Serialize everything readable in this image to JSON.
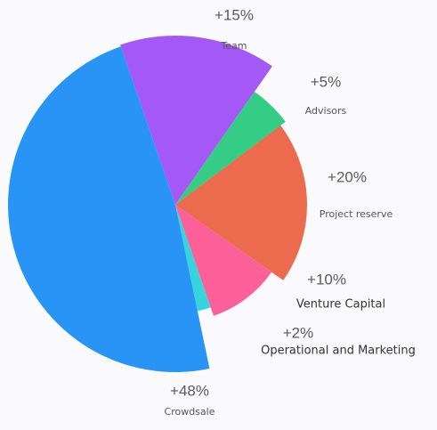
{
  "chart_data": {
    "type": "pie",
    "categories": [
      "Team",
      "Advisors",
      "Project reserve",
      "Venture Capital",
      "Operational and Marketing",
      "Crowdsale"
    ],
    "values": [
      15,
      5,
      20,
      10,
      2,
      48
    ],
    "value_labels": [
      "+15%",
      "+5%",
      "+20%",
      "+10%",
      "+2%",
      "+48%"
    ],
    "colors": [
      "#a459f6",
      "#35cc86",
      "#ec6a4e",
      "#fb6098",
      "#36d5de",
      "#2894f6"
    ]
  }
}
